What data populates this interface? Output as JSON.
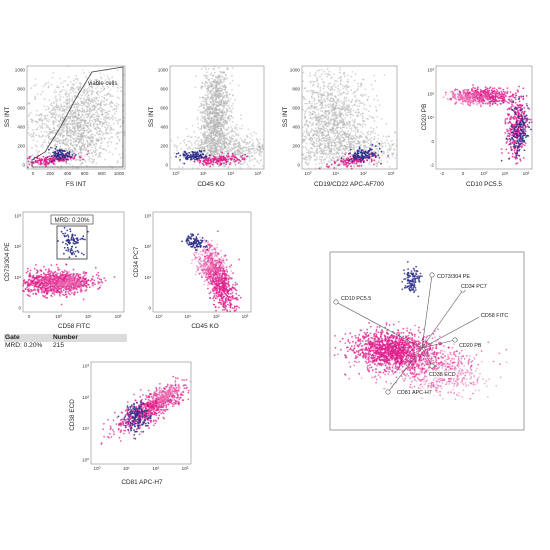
{
  "colors": {
    "cloud": "#b2b2b2",
    "blast": "#2b2e8a",
    "normal": "#df1f8c",
    "normal_light": "#ec6db0",
    "gate": "#444444"
  },
  "chart_data": [
    {
      "type": "scatter",
      "id": "p1",
      "xlabel": "FS INT",
      "ylabel": "SS INT",
      "x_ticks": [
        "0",
        "200",
        "400",
        "600",
        "800",
        "1000"
      ],
      "y_ticks": [
        "0",
        "200",
        "400",
        "600",
        "800",
        "1000"
      ],
      "xlim": [
        0,
        1000
      ],
      "ylim": [
        0,
        1000
      ],
      "gate_label": "viable cells",
      "populations": [
        "cloud",
        "normal",
        "blast"
      ]
    },
    {
      "type": "scatter",
      "id": "p2",
      "xlabel": "CD45 KO",
      "ylabel": "SS INT",
      "x_ticks": [
        "10⁰",
        "10¹",
        "10²",
        "10³"
      ],
      "y_ticks": [
        "0",
        "200",
        "400",
        "600",
        "800",
        "1000"
      ],
      "xscale": "log",
      "ylim": [
        0,
        1000
      ],
      "populations": [
        "cloud",
        "normal",
        "blast"
      ]
    },
    {
      "type": "scatter",
      "id": "p3",
      "xlabel": "CD19/CD22 APC-AF700",
      "ylabel": "SS INT",
      "x_ticks": [
        "10⁰",
        "10¹",
        "10²",
        "10³"
      ],
      "y_ticks": [
        "0",
        "200",
        "400",
        "600",
        "800",
        "1000"
      ],
      "xscale": "log",
      "ylim": [
        0,
        1000
      ],
      "populations": [
        "cloud",
        "normal",
        "blast"
      ]
    },
    {
      "type": "scatter",
      "id": "p4",
      "xlabel": "CD10 PC5.5",
      "ylabel": "CD20 PB",
      "x_ticks": [
        "-2",
        "0",
        "10⁰",
        "10¹",
        "10²"
      ],
      "y_ticks": [
        "-2",
        "0",
        "10¹",
        "10²",
        "10³"
      ],
      "populations": [
        "normal",
        "blast"
      ]
    },
    {
      "type": "scatter",
      "id": "p5",
      "xlabel": "CD58 FITC",
      "ylabel": "CD73/304 PE",
      "x_ticks": [
        "0",
        "10⁰",
        "10¹",
        "10²"
      ],
      "y_ticks": [
        "0",
        "10¹",
        "10²",
        "10³"
      ],
      "gate_label": "MRD: 0.20%",
      "populations": [
        "normal",
        "blast"
      ]
    },
    {
      "type": "scatter",
      "id": "p6",
      "xlabel": "CD45 KO",
      "ylabel": "CD34 PC7",
      "x_ticks": [
        "10⁰",
        "10¹",
        "10²",
        "10³"
      ],
      "y_ticks": [
        "0",
        "10¹",
        "10²",
        "10³"
      ],
      "populations": [
        "normal",
        "blast"
      ]
    },
    {
      "type": "scatter",
      "id": "p7",
      "xlabel": "CD81 APC-H7",
      "ylabel": "CD38 ECD",
      "x_ticks": [
        "10⁰",
        "10¹",
        "10²",
        "10³"
      ],
      "y_ticks": [
        "10⁰",
        "10¹",
        "10²",
        "10³"
      ],
      "populations": [
        "normal",
        "blast"
      ]
    },
    {
      "type": "scatter",
      "id": "radar",
      "subtype": "radar-projection",
      "marker_labels": [
        "CD73/304 PE",
        "CD34 PC7",
        "CD10 PC5.5",
        "CD58 FITC",
        "CD20 PB",
        "CD38 ECD",
        "CD81 APC-H7"
      ],
      "populations": [
        "normal",
        "blast"
      ]
    }
  ],
  "gate_table": {
    "headers": [
      "Gate",
      "Number"
    ],
    "rows": [
      {
        "gate": "MRD: 0.20%",
        "number": "215"
      }
    ]
  }
}
